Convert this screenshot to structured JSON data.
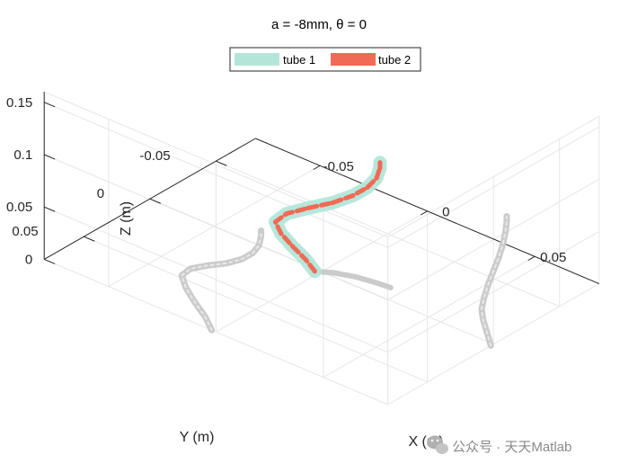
{
  "chart_data": {
    "type": "line",
    "title": "a = -8mm, θ = 0",
    "xlabel": "X (m)",
    "ylabel": "Y (m)",
    "zlabel": "Z (m)",
    "xlim": [
      -0.08,
      0.08
    ],
    "ylim": [
      -0.08,
      0.08
    ],
    "zlim": [
      0,
      0.16
    ],
    "xticks": [
      "-0.05",
      "0",
      "0.05"
    ],
    "yticks": [
      "-0.05",
      "0",
      "0.05"
    ],
    "zticks": [
      "0",
      "0.05",
      "0.1",
      "0.15"
    ],
    "grid": true,
    "legend_position": "top-center",
    "series": [
      {
        "name": "tube 1",
        "color": "#b3e6d9",
        "points": [
          {
            "x": -0.002,
            "y": 0.002,
            "z": 0.0
          },
          {
            "x": -0.005,
            "y": 0.004,
            "z": 0.01
          },
          {
            "x": -0.01,
            "y": 0.006,
            "z": 0.02
          },
          {
            "x": -0.014,
            "y": 0.008,
            "z": 0.03
          },
          {
            "x": -0.016,
            "y": 0.009,
            "z": 0.04
          },
          {
            "x": -0.012,
            "y": 0.007,
            "z": 0.05
          },
          {
            "x": -0.004,
            "y": 0.004,
            "z": 0.06
          },
          {
            "x": 0.005,
            "y": 0.0,
            "z": 0.07
          },
          {
            "x": 0.012,
            "y": -0.004,
            "z": 0.08
          },
          {
            "x": 0.017,
            "y": -0.007,
            "z": 0.09
          },
          {
            "x": 0.02,
            "y": -0.009,
            "z": 0.1
          },
          {
            "x": 0.021,
            "y": -0.01,
            "z": 0.11
          },
          {
            "x": 0.021,
            "y": -0.01,
            "z": 0.115
          }
        ]
      },
      {
        "name": "tube 2",
        "color": "#f06a55",
        "points": [
          {
            "x": -0.002,
            "y": 0.002,
            "z": 0.0
          },
          {
            "x": -0.005,
            "y": 0.004,
            "z": 0.01
          },
          {
            "x": -0.01,
            "y": 0.006,
            "z": 0.02
          },
          {
            "x": -0.014,
            "y": 0.008,
            "z": 0.03
          },
          {
            "x": -0.016,
            "y": 0.009,
            "z": 0.04
          },
          {
            "x": -0.012,
            "y": 0.007,
            "z": 0.05
          },
          {
            "x": -0.004,
            "y": 0.004,
            "z": 0.06
          },
          {
            "x": 0.005,
            "y": 0.0,
            "z": 0.07
          },
          {
            "x": 0.012,
            "y": -0.004,
            "z": 0.08
          },
          {
            "x": 0.017,
            "y": -0.007,
            "z": 0.09
          },
          {
            "x": 0.02,
            "y": -0.009,
            "z": 0.1
          },
          {
            "x": 0.021,
            "y": -0.01,
            "z": 0.11
          },
          {
            "x": 0.021,
            "y": -0.01,
            "z": 0.115
          }
        ]
      }
    ],
    "projection_color": "#c8c8c8"
  },
  "watermark": {
    "text": "公众号 · 天天Matlab",
    "icon": "wechat-icon"
  }
}
